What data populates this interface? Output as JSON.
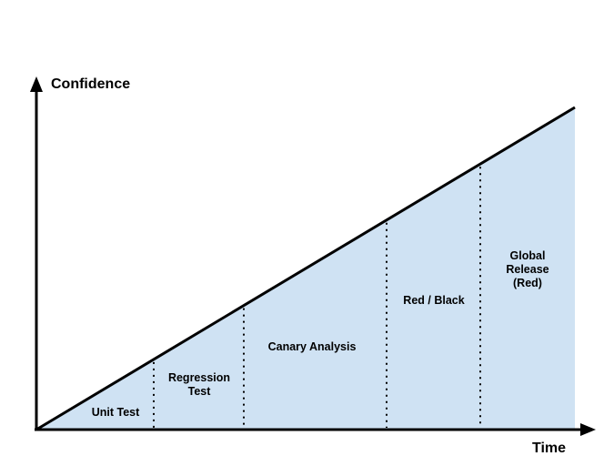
{
  "diagram": {
    "y_axis_label": "Confidence",
    "x_axis_label": "Time",
    "colors": {
      "area_fill": "#cfe2f3",
      "line": "#000000",
      "divider": "#000000",
      "text": "#000000"
    },
    "stages": [
      {
        "lines": [
          "Unit Test"
        ]
      },
      {
        "lines": [
          "Regression",
          "Test"
        ]
      },
      {
        "lines": [
          "Canary Analysis"
        ]
      },
      {
        "lines": [
          "Red / Black"
        ]
      },
      {
        "lines": [
          "Global",
          "Release",
          "(Red)"
        ]
      }
    ]
  }
}
